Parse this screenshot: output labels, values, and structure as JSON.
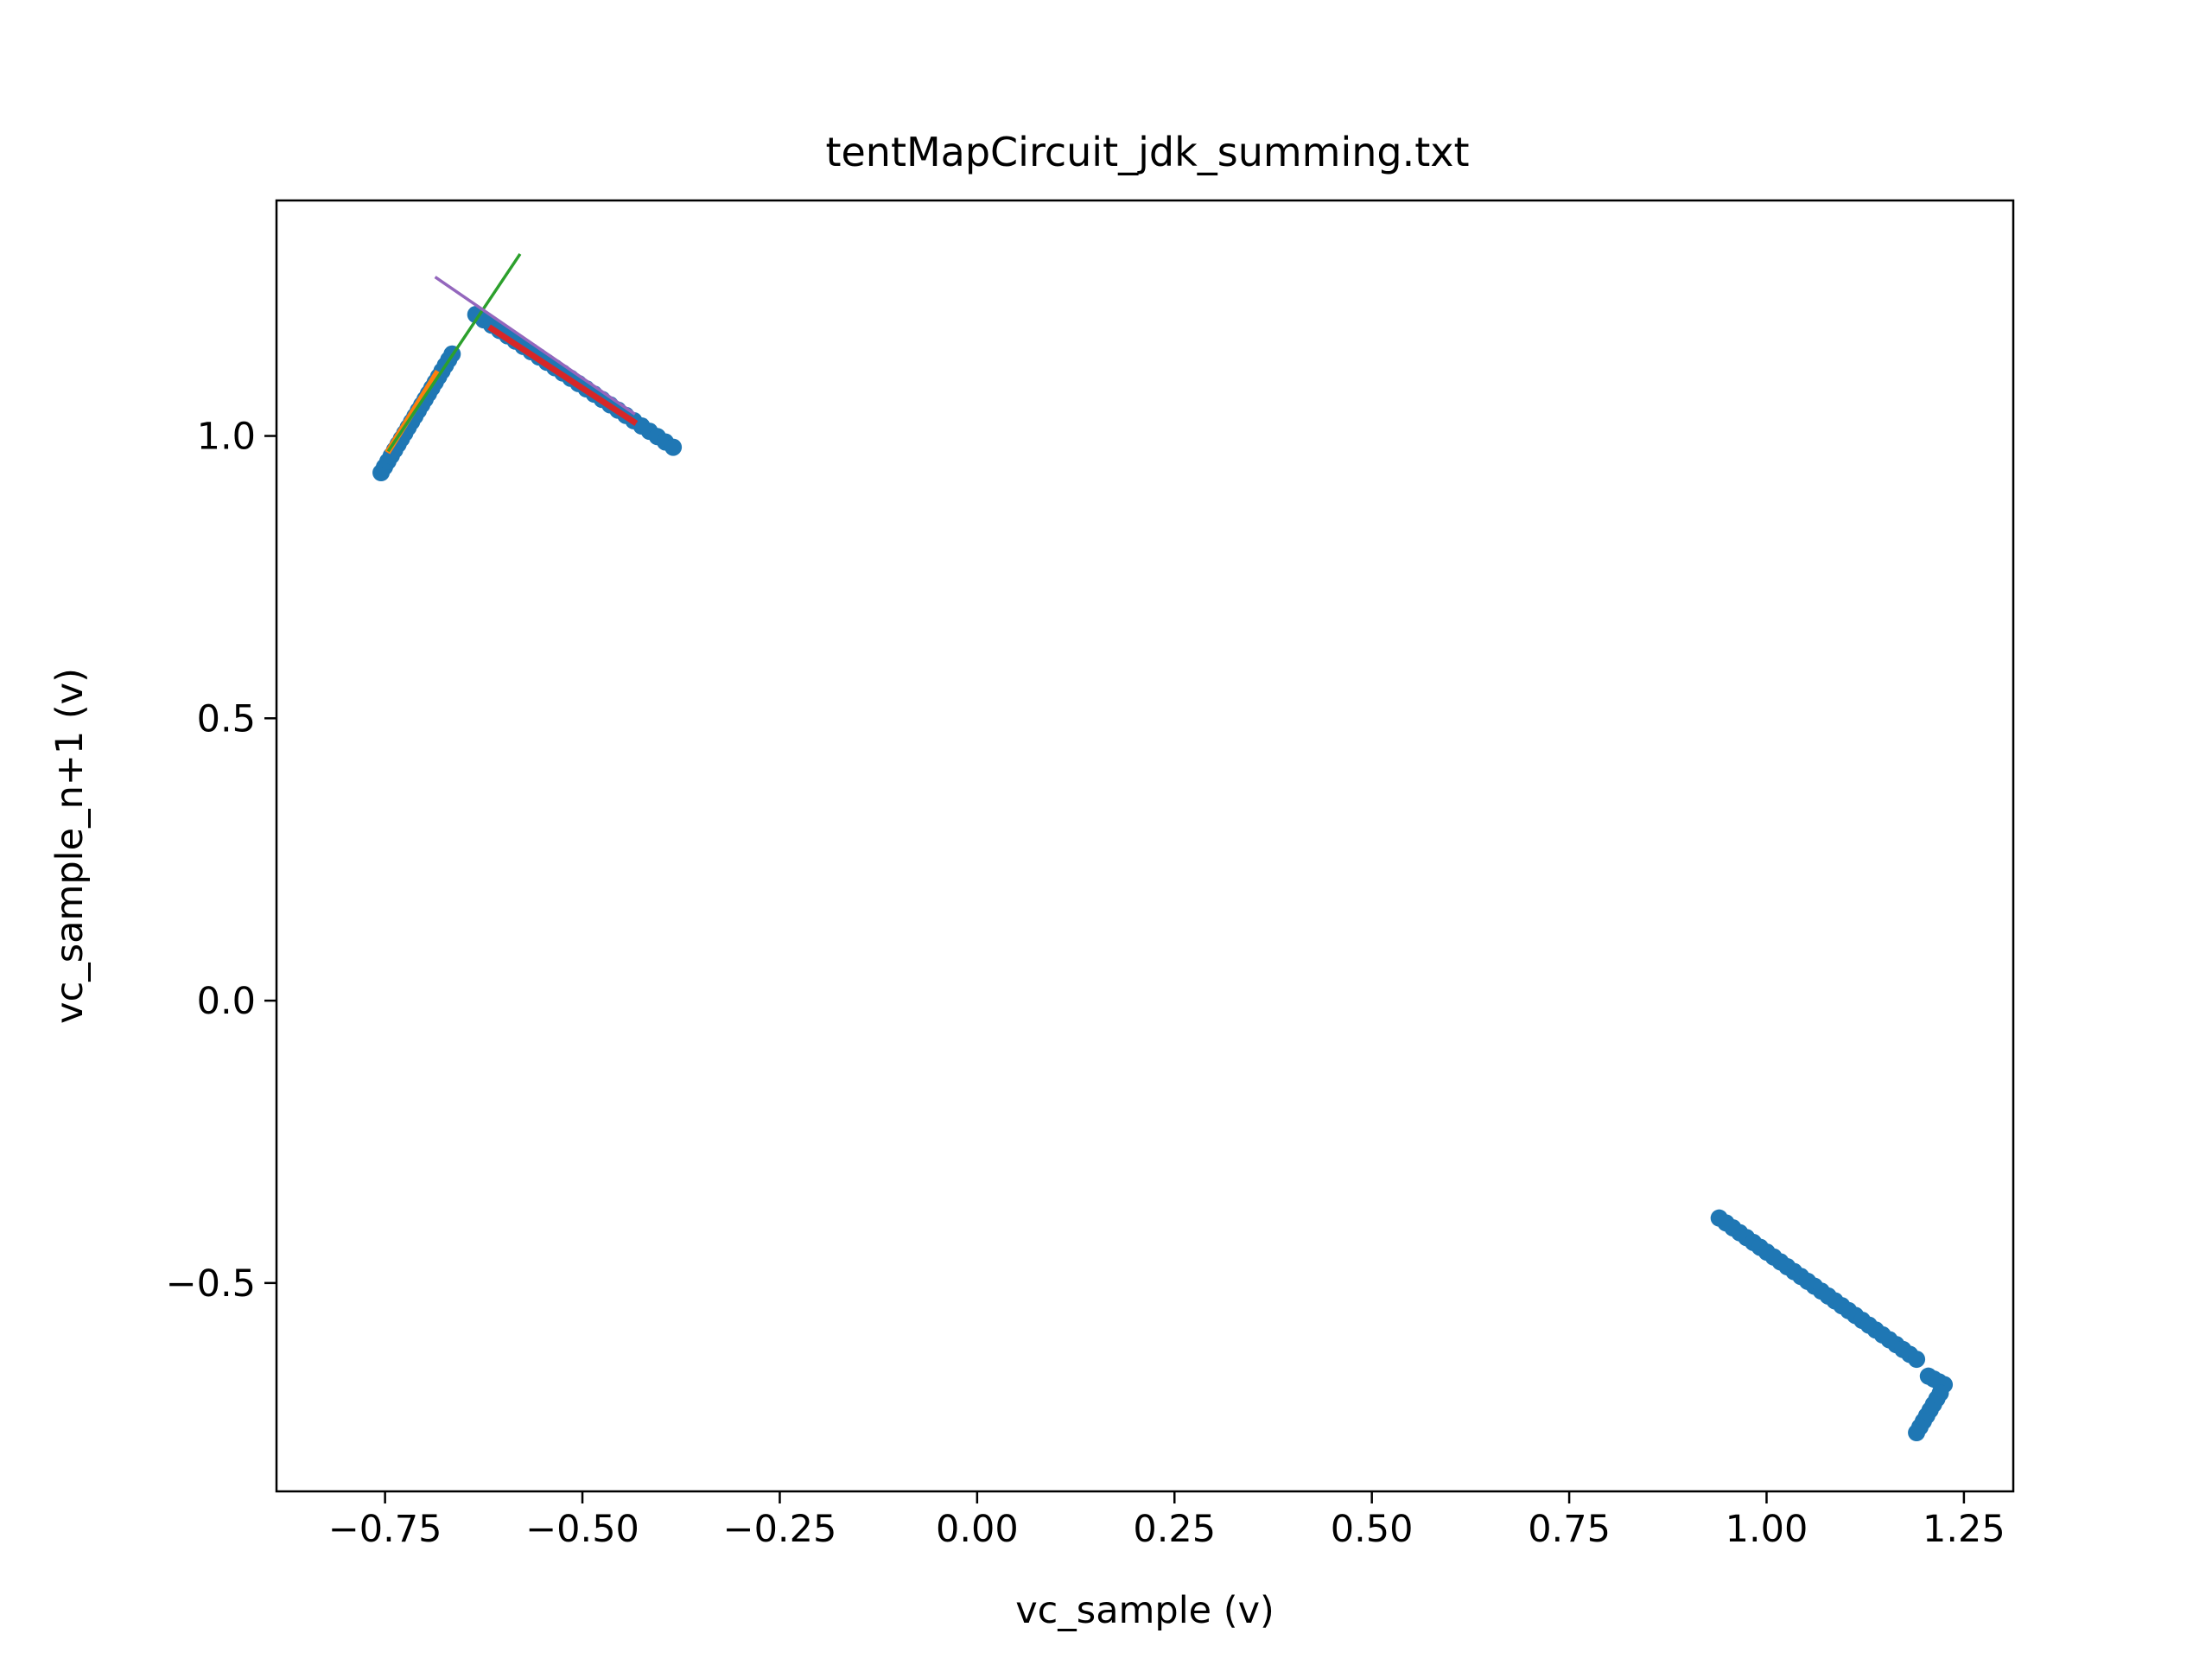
{
  "chart_data": {
    "type": "scatter",
    "title": "tentMapCircuit_jdk_summing.txt",
    "xlabel": "vc_sample (v)",
    "ylabel": "vc_sample_n+1 (v)",
    "xlim": [
      -0.8875,
      1.3125
    ],
    "ylim": [
      -0.869,
      1.417
    ],
    "xticks": [
      {
        "value": -0.75,
        "label": "−0.75"
      },
      {
        "value": -0.5,
        "label": "−0.50"
      },
      {
        "value": -0.25,
        "label": "−0.25"
      },
      {
        "value": 0.0,
        "label": "0.00"
      },
      {
        "value": 0.25,
        "label": "0.25"
      },
      {
        "value": 0.5,
        "label": "0.50"
      },
      {
        "value": 0.75,
        "label": "0.75"
      },
      {
        "value": 1.0,
        "label": "1.00"
      },
      {
        "value": 1.25,
        "label": "1.25"
      }
    ],
    "yticks": [
      {
        "value": -0.5,
        "label": "−0.5"
      },
      {
        "value": 0.0,
        "label": "0.0"
      },
      {
        "value": 0.5,
        "label": "0.5"
      },
      {
        "value": 1.0,
        "label": "1.0"
      }
    ],
    "grid": false,
    "scatter_series": [
      {
        "color": "#1f77b4",
        "segments": [
          {
            "x0": -0.755,
            "y0": 0.935,
            "x1": -0.665,
            "y1": 1.145,
            "n": 22
          },
          {
            "x0": -0.635,
            "y0": 1.215,
            "x1": -0.385,
            "y1": 0.98,
            "n": 26
          },
          {
            "x0": 0.94,
            "y0": -0.385,
            "x1": 1.19,
            "y1": -0.635,
            "n": 30
          },
          {
            "x0": 1.205,
            "y0": -0.665,
            "x1": 1.225,
            "y1": -0.68,
            "n": 4
          },
          {
            "x0": 1.22,
            "y0": -0.695,
            "x1": 1.19,
            "y1": -0.765,
            "n": 8
          }
        ]
      }
    ],
    "line_series": [
      {
        "color": "#ff7f0e",
        "width": 7,
        "x": [
          -0.745,
          -0.685
        ],
        "y": [
          0.975,
          1.11
        ]
      },
      {
        "color": "#d62728",
        "width": 7,
        "x": [
          -0.615,
          -0.435
        ],
        "y": [
          1.19,
          1.025
        ]
      },
      {
        "color": "#2ca02c",
        "width": 3.5,
        "x": [
          -0.745,
          -0.58
        ],
        "y": [
          0.975,
          1.32
        ]
      },
      {
        "color": "#9467bd",
        "width": 3.5,
        "x": [
          -0.685,
          -0.435
        ],
        "y": [
          1.28,
          1.04
        ]
      }
    ]
  }
}
